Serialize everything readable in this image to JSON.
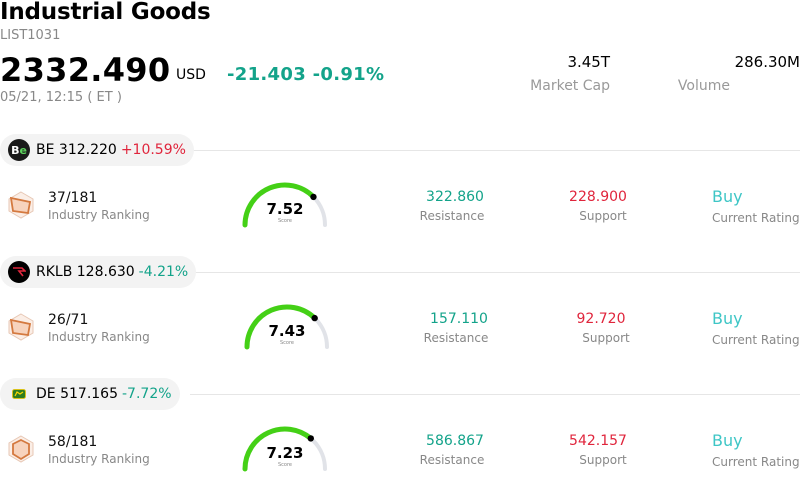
{
  "header": {
    "title": "Industrial Goods",
    "code": "LIST1031",
    "price": "2332.490",
    "currency": "USD",
    "change": "-21.403",
    "change_pct": "-0.91%",
    "timestamp": "05/21, 12:15  ( ET )",
    "market_cap_value": "3.45T",
    "market_cap_label": "Market Cap",
    "volume_value": "286.30M",
    "volume_label": "Volume"
  },
  "colors": {
    "up": "#e0253c",
    "down": "#13a38a",
    "rating": "#3ec6c6",
    "gauge_fill": "#44d016",
    "gauge_track": "#e1e3e8"
  },
  "labels": {
    "industry_ranking": "Industry Ranking",
    "score": "Score",
    "resistance": "Resistance",
    "support": "Support",
    "current_rating": "Current Rating"
  },
  "stocks": [
    {
      "ticker": "BE",
      "price": "312.220",
      "change_pct": "+10.59%",
      "logo_icon": "bloom-energy-logo-icon",
      "rank": "37/181",
      "score": "7.52",
      "score_fraction": 0.752,
      "resistance": "322.860",
      "support": "228.900",
      "rating": "Buy"
    },
    {
      "ticker": "RKLB",
      "price": "128.630",
      "change_pct": "-4.21%",
      "logo_icon": "rocket-lab-logo-icon",
      "rank": "26/71",
      "score": "7.43",
      "score_fraction": 0.743,
      "resistance": "157.110",
      "support": "92.720",
      "rating": "Buy"
    },
    {
      "ticker": "DE",
      "price": "517.165",
      "change_pct": "-7.72%",
      "logo_icon": "john-deere-logo-icon",
      "rank": "58/181",
      "score": "7.23",
      "score_fraction": 0.723,
      "resistance": "586.867",
      "support": "542.157",
      "rating": "Buy"
    }
  ]
}
